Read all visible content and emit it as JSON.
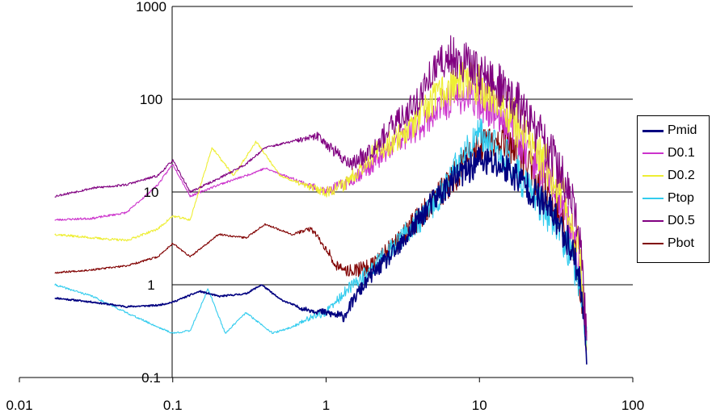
{
  "chart_data": {
    "type": "line",
    "x_scale": "log",
    "y_scale": "log",
    "xlim": [
      0.01,
      100
    ],
    "ylim": [
      0.1,
      1000
    ],
    "x_ticks": [
      "0.01",
      "0.1",
      "1",
      "10",
      "100"
    ],
    "y_ticks": [
      "0.1",
      "1",
      "10",
      "100",
      "1000"
    ],
    "grid": "horizontal major gridlines",
    "legend_position": "right",
    "series": [
      {
        "name": "Pmid",
        "color": "#000080",
        "noise": 0.35,
        "seed": 11,
        "x": [
          0.017,
          0.03,
          0.05,
          0.08,
          0.1,
          0.15,
          0.2,
          0.3,
          0.38,
          0.5,
          0.7,
          1.0,
          1.3,
          1.6,
          2,
          3,
          4,
          5,
          7,
          10,
          15,
          20,
          30,
          40,
          45,
          50
        ],
        "y": [
          0.72,
          0.65,
          0.58,
          0.6,
          0.65,
          0.85,
          0.75,
          0.8,
          1.0,
          0.7,
          0.55,
          0.5,
          0.45,
          0.8,
          1.3,
          2.5,
          5,
          8,
          14,
          22,
          18,
          12,
          6,
          2.5,
          1.2,
          0.2
        ]
      },
      {
        "name": "D0.1",
        "color": "#cc33cc",
        "noise": 0.45,
        "seed": 23,
        "x": [
          0.017,
          0.03,
          0.05,
          0.08,
          0.1,
          0.13,
          0.2,
          0.3,
          0.4,
          0.6,
          1.0,
          1.3,
          2,
          3,
          4,
          5,
          7,
          10,
          15,
          20,
          30,
          40,
          45,
          50
        ],
        "y": [
          5,
          5.2,
          6,
          12,
          20,
          9,
          12,
          15,
          18,
          14,
          10,
          12,
          20,
          35,
          50,
          70,
          110,
          100,
          60,
          30,
          12,
          4,
          1.5,
          0.25
        ]
      },
      {
        "name": "D0.2",
        "color": "#eeee33",
        "noise": 0.5,
        "seed": 37,
        "x": [
          0.017,
          0.03,
          0.05,
          0.08,
          0.1,
          0.13,
          0.18,
          0.25,
          0.35,
          0.5,
          0.7,
          1.0,
          1.3,
          2,
          3,
          4,
          5,
          7,
          10,
          15,
          20,
          30,
          40,
          45,
          50
        ],
        "y": [
          3.5,
          3.2,
          3.0,
          4,
          5.5,
          5,
          30,
          15,
          35,
          15,
          12,
          10,
          12,
          25,
          40,
          60,
          100,
          150,
          150,
          80,
          40,
          15,
          5,
          2,
          0.3
        ]
      },
      {
        "name": "Ptop",
        "color": "#33ccee",
        "noise": 0.4,
        "seed": 41,
        "x": [
          0.017,
          0.03,
          0.05,
          0.08,
          0.1,
          0.13,
          0.17,
          0.22,
          0.3,
          0.45,
          0.6,
          0.8,
          1.0,
          1.3,
          2,
          3,
          5,
          7,
          10,
          15,
          20,
          30,
          40,
          45,
          50
        ],
        "y": [
          1.0,
          0.75,
          0.5,
          0.35,
          0.3,
          0.32,
          0.9,
          0.3,
          0.5,
          0.3,
          0.35,
          0.45,
          0.5,
          0.8,
          1.5,
          3,
          7,
          18,
          40,
          25,
          12,
          5,
          2,
          1,
          0.3
        ]
      },
      {
        "name": "D0.5",
        "color": "#800080",
        "noise": 0.5,
        "seed": 53,
        "x": [
          0.017,
          0.03,
          0.05,
          0.08,
          0.1,
          0.13,
          0.2,
          0.3,
          0.4,
          0.6,
          0.9,
          1.2,
          1.5,
          2,
          3,
          4,
          5,
          6.5,
          8,
          10,
          15,
          20,
          30,
          40,
          45,
          50
        ],
        "y": [
          9,
          11,
          12,
          15,
          22,
          10,
          14,
          20,
          30,
          35,
          40,
          25,
          20,
          30,
          60,
          100,
          200,
          300,
          250,
          200,
          120,
          70,
          25,
          8,
          3,
          0.3
        ]
      },
      {
        "name": "Pbot",
        "color": "#800000",
        "noise": 0.4,
        "seed": 67,
        "x": [
          0.017,
          0.03,
          0.05,
          0.08,
          0.1,
          0.13,
          0.2,
          0.3,
          0.4,
          0.6,
          0.8,
          1.0,
          1.2,
          1.5,
          2,
          3,
          5,
          7,
          10,
          15,
          20,
          30,
          40,
          45,
          50
        ],
        "y": [
          1.35,
          1.45,
          1.6,
          2.0,
          2.8,
          2.0,
          3.5,
          3.2,
          4.5,
          3.5,
          4,
          2.5,
          1.5,
          1.4,
          1.6,
          3,
          8,
          15,
          30,
          35,
          20,
          8,
          3,
          1.2,
          0.25
        ]
      }
    ]
  }
}
